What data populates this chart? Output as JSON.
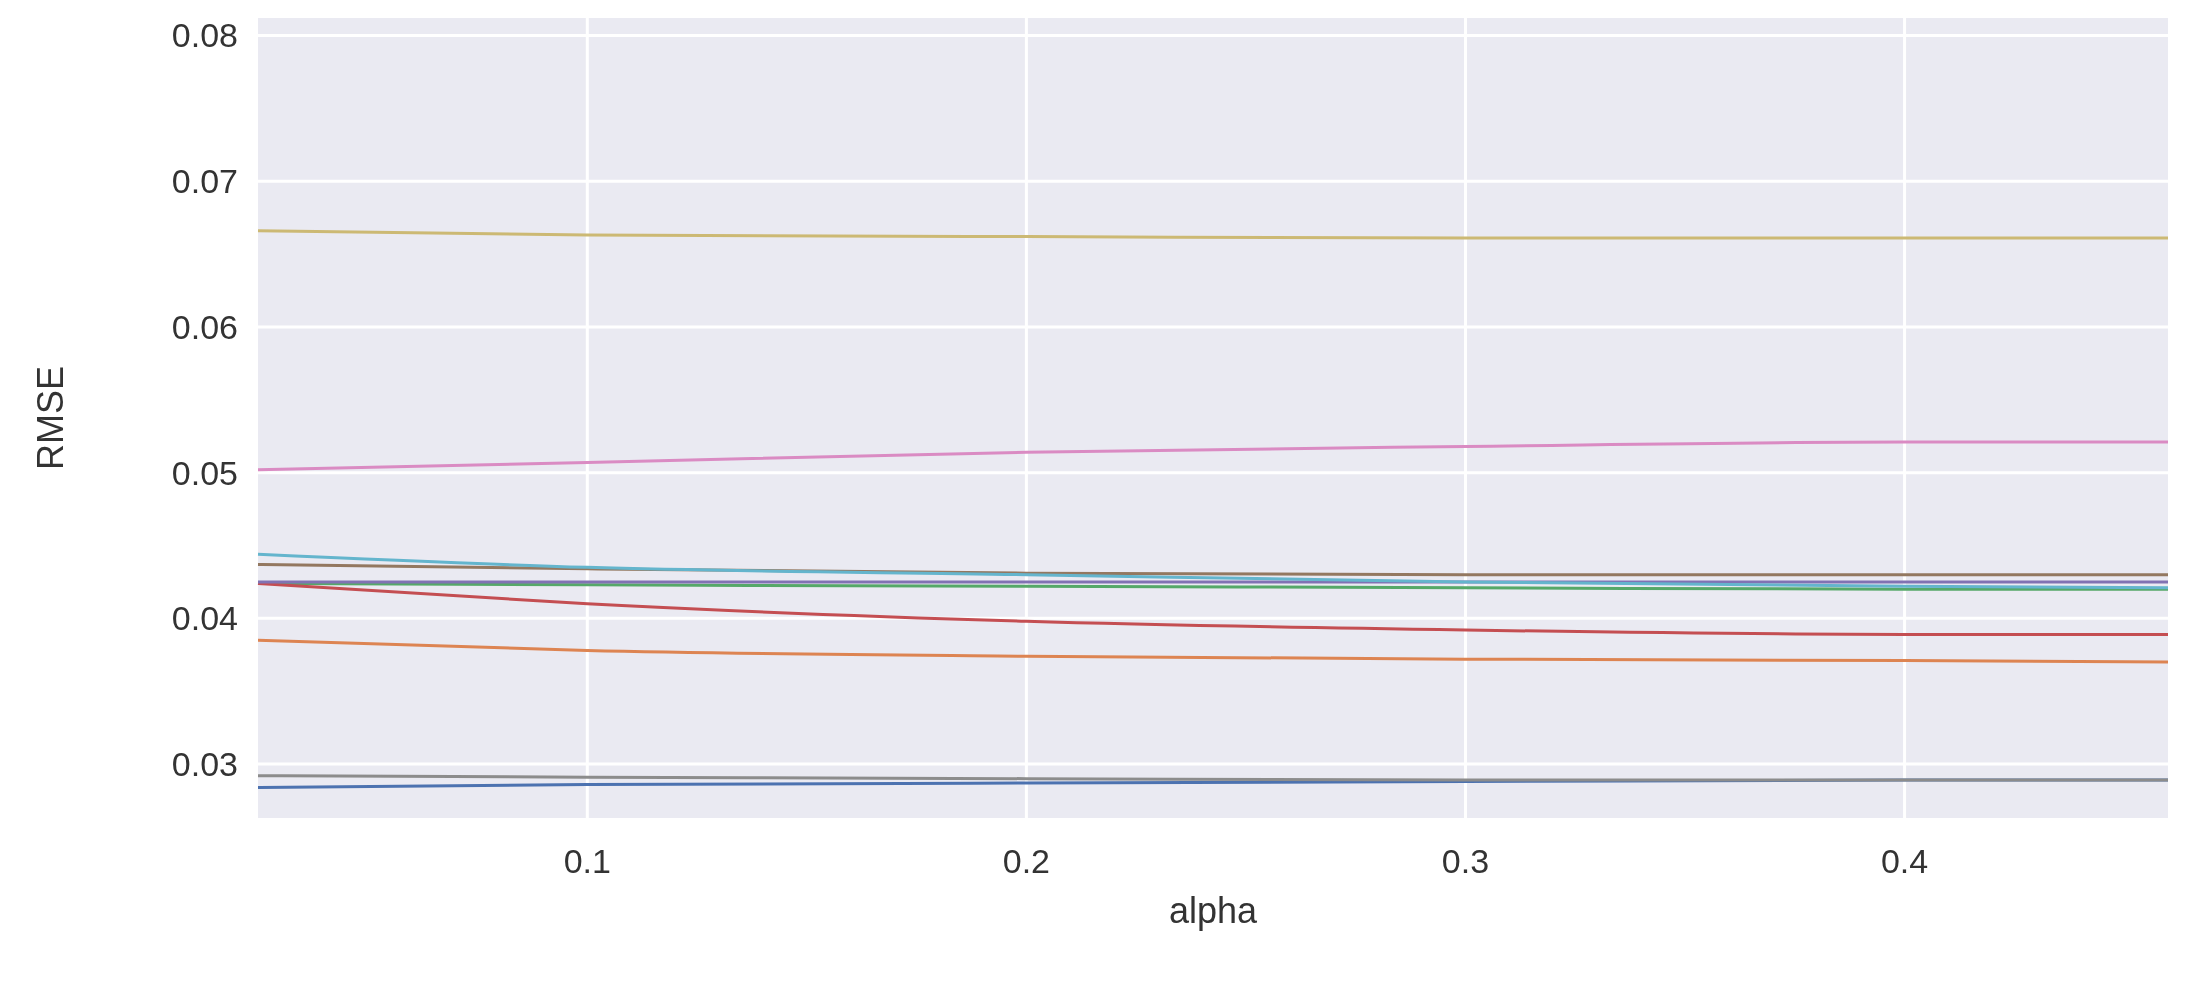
{
  "chart_data": {
    "type": "line",
    "xlabel": "alpha",
    "ylabel": "RMSE",
    "x": [
      0.025,
      0.1,
      0.2,
      0.3,
      0.4,
      0.46
    ],
    "xlim": [
      0.025,
      0.46
    ],
    "xticks": [
      0.1,
      0.2,
      0.3,
      0.4
    ],
    "ylim": [
      0.0263,
      0.0812
    ],
    "yticks": [
      0.03,
      0.04,
      0.05,
      0.06,
      0.07,
      0.08
    ],
    "grid": true,
    "marker": "none",
    "line_style": "solid",
    "series": [
      {
        "color": "#4c72b0",
        "values": [
          0.0284,
          0.0286,
          0.0287,
          0.0288,
          0.0289,
          0.0289
        ]
      },
      {
        "color": "#dd8452",
        "values": [
          0.0385,
          0.0378,
          0.0374,
          0.0372,
          0.0371,
          0.037
        ]
      },
      {
        "color": "#55a868",
        "values": [
          0.0424,
          0.0423,
          0.0422,
          0.0421,
          0.042,
          0.042
        ]
      },
      {
        "color": "#c44e52",
        "values": [
          0.0424,
          0.041,
          0.0398,
          0.0392,
          0.0389,
          0.0389
        ]
      },
      {
        "color": "#8172b3",
        "values": [
          0.0425,
          0.0425,
          0.0425,
          0.0425,
          0.0425,
          0.0425
        ]
      },
      {
        "color": "#937860",
        "values": [
          0.0437,
          0.0434,
          0.0431,
          0.043,
          0.043,
          0.043
        ]
      },
      {
        "color": "#da8bc3",
        "values": [
          0.0502,
          0.0507,
          0.0514,
          0.0518,
          0.0521,
          0.0521
        ]
      },
      {
        "color": "#8c8c8c",
        "values": [
          0.0292,
          0.0291,
          0.029,
          0.0289,
          0.0289,
          0.0289
        ]
      },
      {
        "color": "#ccb974",
        "values": [
          0.0666,
          0.0663,
          0.0662,
          0.0661,
          0.0661,
          0.0661
        ]
      },
      {
        "color": "#64b5cd",
        "values": [
          0.0444,
          0.0435,
          0.043,
          0.0425,
          0.0422,
          0.0421
        ]
      }
    ]
  }
}
